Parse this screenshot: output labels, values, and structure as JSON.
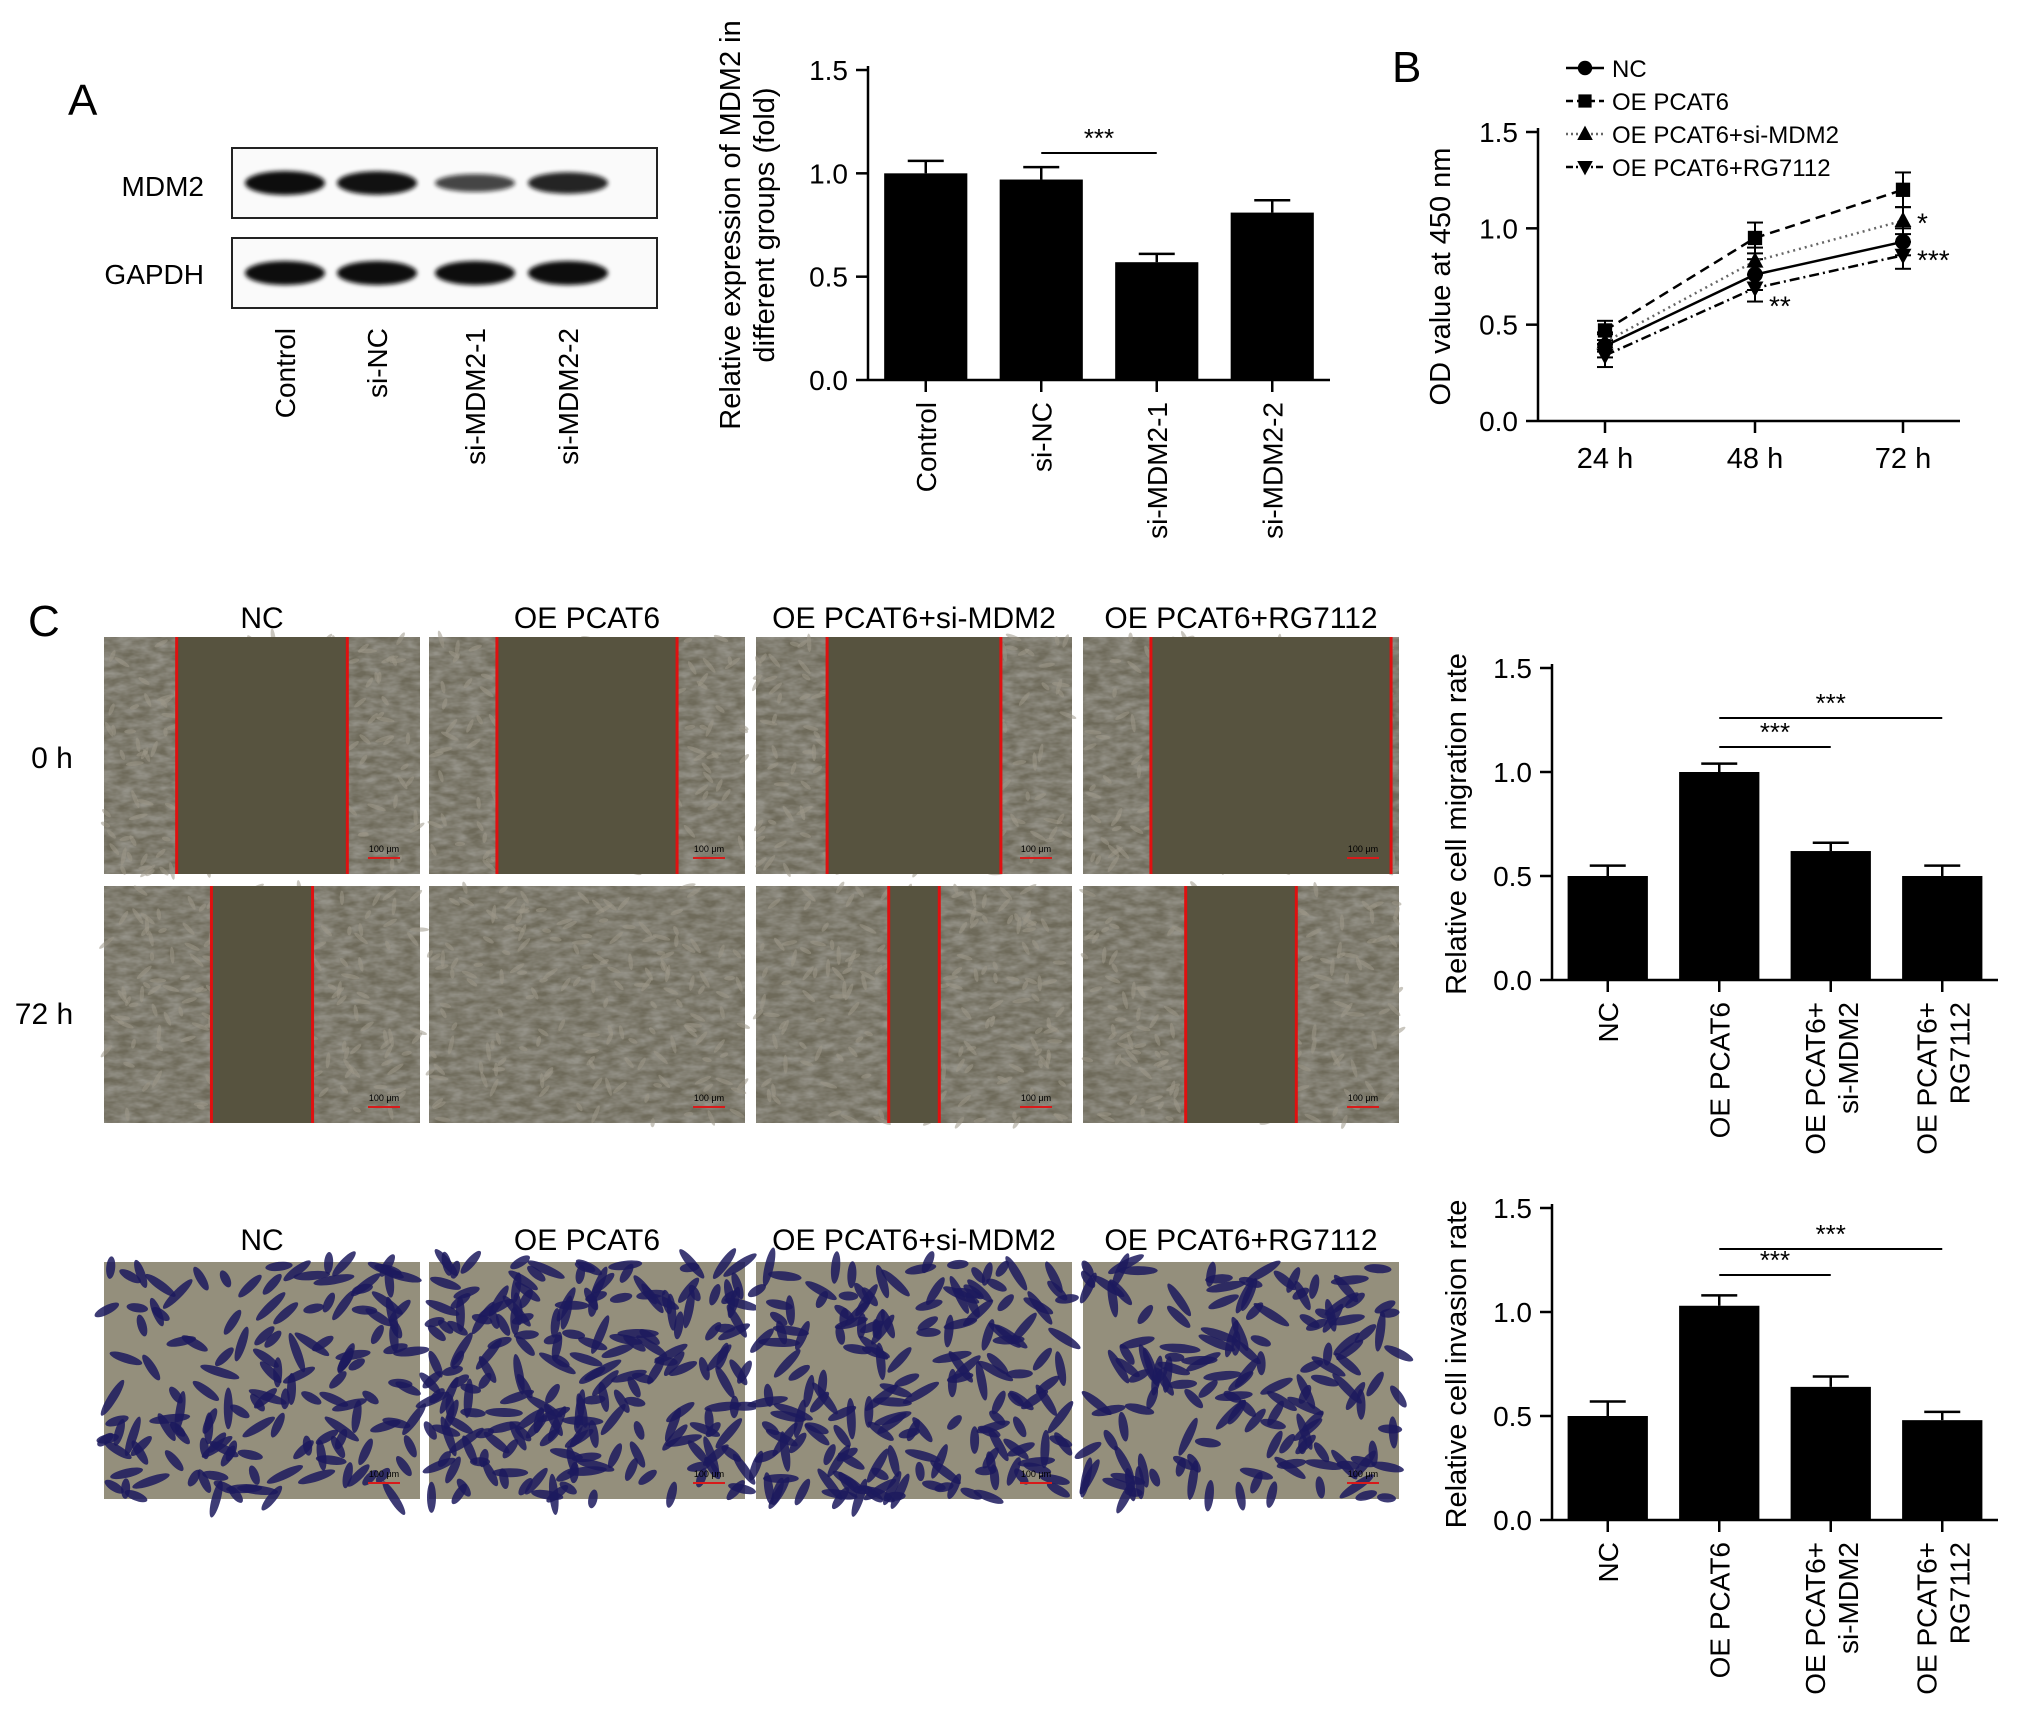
{
  "panel_labels": {
    "A": "A",
    "B": "B",
    "C": "C"
  },
  "western_blot": {
    "rows": [
      {
        "label": "MDM2",
        "intensities": [
          1.0,
          0.97,
          0.56,
          0.82
        ]
      },
      {
        "label": "GAPDH",
        "intensities": [
          1.0,
          1.0,
          1.0,
          1.0
        ]
      }
    ],
    "lanes": [
      "Control",
      "si-NC",
      "si-MDM2-1",
      "si-MDM2-2"
    ],
    "band_color": "#111111"
  },
  "micrographs": {
    "group_labels": [
      "NC",
      "OE PCAT6",
      "OE PCAT6+si-MDM2",
      "OE PCAT6+RG7112"
    ],
    "migration_rows": [
      "0 h",
      "72 h"
    ],
    "scale_bar": "100 μm",
    "wound_line_color": "#e01010",
    "wound_fraction": {
      "0 h": [
        0.54,
        0.57,
        0.55,
        0.76
      ],
      "72 h": [
        0.32,
        0.0,
        0.16,
        0.35
      ]
    },
    "invasion_stain_color": "#1c1a5e",
    "invasion_cell_density": [
      0.55,
      1.0,
      0.8,
      0.6
    ]
  },
  "chart_data": [
    {
      "id": "mdm2-expression",
      "type": "bar",
      "categories": [
        "Control",
        "si-NC",
        "si-MDM2-1",
        "si-MDM2-2"
      ],
      "values": [
        1.0,
        0.97,
        0.57,
        0.81
      ],
      "errors": [
        0.06,
        0.06,
        0.04,
        0.06
      ],
      "ylabel": "Relative expression of MDM2 in different groups (fold)",
      "ylabel_lines": [
        "Relative expression of MDM2 in",
        "different groups (fold)"
      ],
      "ylim": [
        0,
        1.5
      ],
      "yticks": [
        "0.0",
        "0.5",
        "1.0",
        "1.5"
      ],
      "significance": [
        {
          "from": 1,
          "to": 2,
          "label": "***"
        }
      ],
      "bar_color": "#000000"
    },
    {
      "id": "cck8-od",
      "type": "line",
      "x": [
        "24 h",
        "48 h",
        "72 h"
      ],
      "series": [
        {
          "name": "NC",
          "values": [
            0.39,
            0.76,
            0.93
          ],
          "errors": [
            0.06,
            0.08,
            0.07
          ],
          "marker": "circle",
          "dash": ""
        },
        {
          "name": "OE PCAT6",
          "values": [
            0.47,
            0.95,
            1.2
          ],
          "errors": [
            0.05,
            0.08,
            0.09
          ],
          "marker": "square",
          "dash": "10,6"
        },
        {
          "name": "OE PCAT6+si-MDM2",
          "values": [
            0.41,
            0.83,
            1.04
          ],
          "errors": [
            0.05,
            0.07,
            0.07
          ],
          "marker": "triangle-up",
          "dash": "2,4"
        },
        {
          "name": "OE PCAT6+RG7112",
          "values": [
            0.34,
            0.69,
            0.86
          ],
          "errors": [
            0.06,
            0.07,
            0.07
          ],
          "marker": "triangle-down",
          "dash": "10,4,2,4"
        }
      ],
      "ylabel": "OD value at 450 nm",
      "ylim": [
        0,
        1.5
      ],
      "yticks": [
        "0.0",
        "0.5",
        "1.0",
        "1.5"
      ],
      "annotations": [
        {
          "x": "72 h",
          "y": 1.05,
          "label": "*"
        },
        {
          "x": "72 h",
          "y": 0.86,
          "label": "***"
        },
        {
          "x": "48 h",
          "y": 0.62,
          "label": "**"
        }
      ],
      "legend": "top-left"
    },
    {
      "id": "migration-rate",
      "type": "bar",
      "categories": [
        "NC",
        "OE PCAT6",
        "OE PCAT6+\nsi-MDM2",
        "OE PCAT6+\nRG7112"
      ],
      "values": [
        0.5,
        1.0,
        0.62,
        0.5
      ],
      "errors": [
        0.05,
        0.04,
        0.04,
        0.05
      ],
      "ylabel": "Relative cell migration rate",
      "ylim": [
        0,
        1.5
      ],
      "yticks": [
        "0.0",
        "0.5",
        "1.0",
        "1.5"
      ],
      "significance": [
        {
          "from": 1,
          "to": 2,
          "label": "***"
        },
        {
          "from": 1,
          "to": 3,
          "label": "***"
        }
      ],
      "bar_color": "#000000"
    },
    {
      "id": "invasion-rate",
      "type": "bar",
      "categories": [
        "NC",
        "OE PCAT6",
        "OE PCAT6+\nsi-MDM2",
        "OE PCAT6+\nRG7112"
      ],
      "values": [
        0.5,
        1.03,
        0.64,
        0.48
      ],
      "errors": [
        0.07,
        0.05,
        0.05,
        0.04
      ],
      "ylabel": "Relative cell invasion rate",
      "ylim": [
        0,
        1.5
      ],
      "yticks": [
        "0.0",
        "0.5",
        "1.0",
        "1.5"
      ],
      "significance": [
        {
          "from": 1,
          "to": 2,
          "label": "***"
        },
        {
          "from": 1,
          "to": 3,
          "label": "***"
        }
      ],
      "bar_color": "#000000"
    }
  ]
}
